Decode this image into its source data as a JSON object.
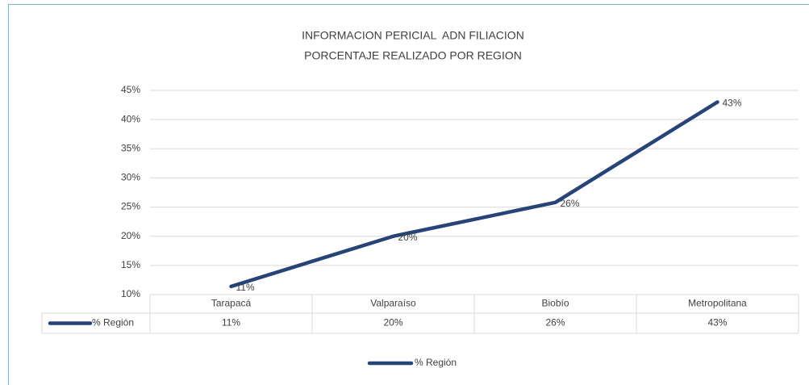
{
  "chart_data": {
    "type": "line",
    "title": "INFORMACION PERICIAL  ADN FILIACION",
    "subtitle": "PORCENTAJE REALIZADO POR REGION",
    "categories": [
      "Tarapacá",
      "Valparaíso",
      "Biobío",
      "Metropolitana"
    ],
    "series": [
      {
        "name": "% Región",
        "color": "#264478",
        "values": [
          11.4,
          20,
          25.8,
          43
        ],
        "value_labels": [
          "11%",
          "20%",
          "26%",
          "43%"
        ]
      }
    ],
    "ylim": [
      10,
      45
    ],
    "yticks": [
      {
        "value": 10,
        "label": "10%"
      },
      {
        "value": 15,
        "label": "15%"
      },
      {
        "value": 20,
        "label": "20%"
      },
      {
        "value": 25,
        "label": "25%"
      },
      {
        "value": 30,
        "label": "30%"
      },
      {
        "value": 35,
        "label": "35%"
      },
      {
        "value": 40,
        "label": "40%"
      },
      {
        "value": 45,
        "label": "45%"
      }
    ],
    "grid": true,
    "legend": "bottom",
    "data_table": true
  }
}
